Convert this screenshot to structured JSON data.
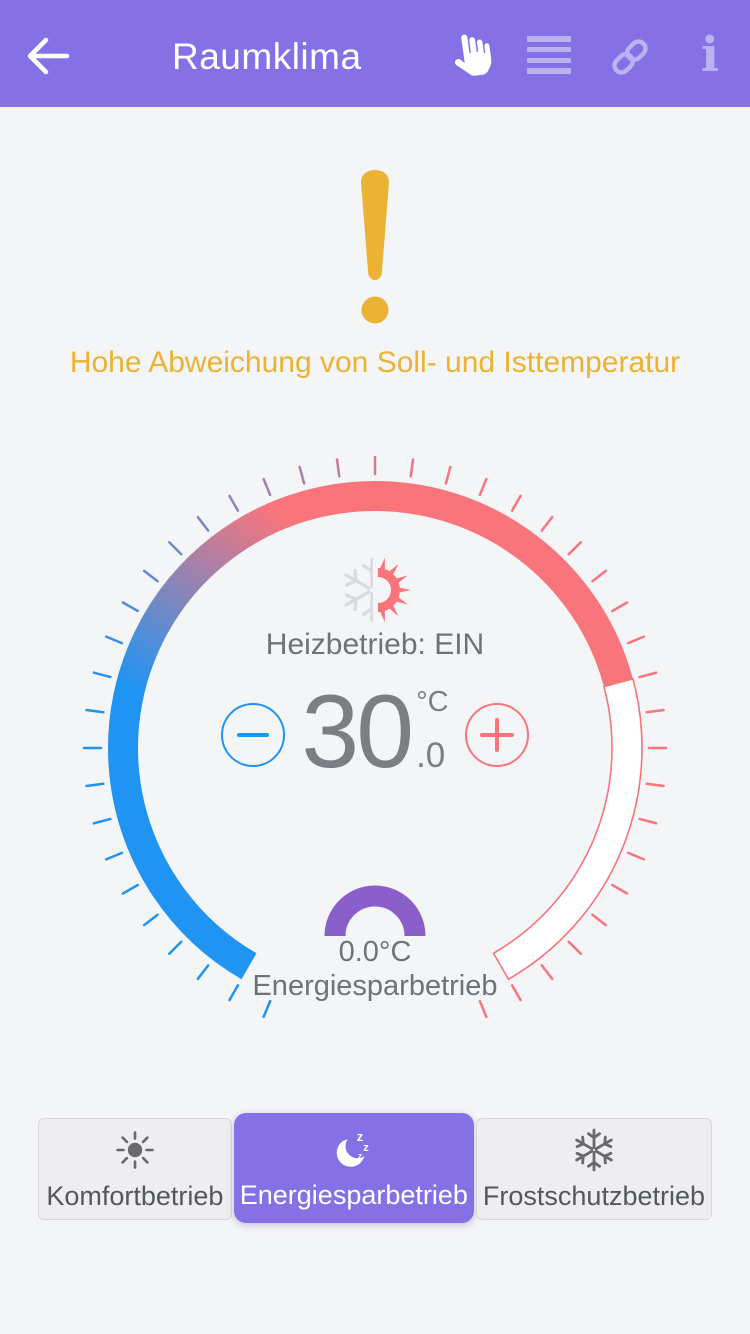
{
  "header": {
    "title": "Raumklima",
    "bg_color": "#8571e5",
    "icon_tint": "#bcb1f1",
    "icons": [
      "back-arrow-icon",
      "hand-pointer-icon",
      "hamburger-menu-icon",
      "link-icon",
      "info-icon"
    ],
    "info_glyph": "i"
  },
  "warning": {
    "text": "Hohe Abweichung von Soll- und Isttemperatur",
    "color": "#ecb233",
    "icon": "exclamation-icon"
  },
  "dial": {
    "min": 0,
    "max": 40,
    "value": 30,
    "status_label": "Heizbetrieb: EIN",
    "temp_int": "30",
    "temp_unit": "°C",
    "temp_frac": ".0",
    "eco_temp": "0.0°C",
    "eco_label": "Energiesparbetrieb",
    "blue": "#2094f3",
    "red": "#f7757b",
    "eco_arc_color": "#8a5fc9",
    "icon": "snowflake-sun-icon"
  },
  "modes": [
    {
      "label": "Komfortbetrieb",
      "icon": "sun-icon",
      "active": false
    },
    {
      "label": "Energiesparbetrieb",
      "icon": "moon-icon",
      "active": true
    },
    {
      "label": "Frostschutzbetrieb",
      "icon": "snowflake-icon",
      "active": false
    }
  ],
  "colors": {
    "page_bg": "#f4f5f7",
    "active_mode_bg": "#8571e5",
    "mode_cell_bg": "#eeeef1",
    "text_gray": "#6d7379",
    "temp_gray": "#7b7e82",
    "flake_gray": "#dadbdd",
    "mode_icon_gray": "#67696e"
  }
}
